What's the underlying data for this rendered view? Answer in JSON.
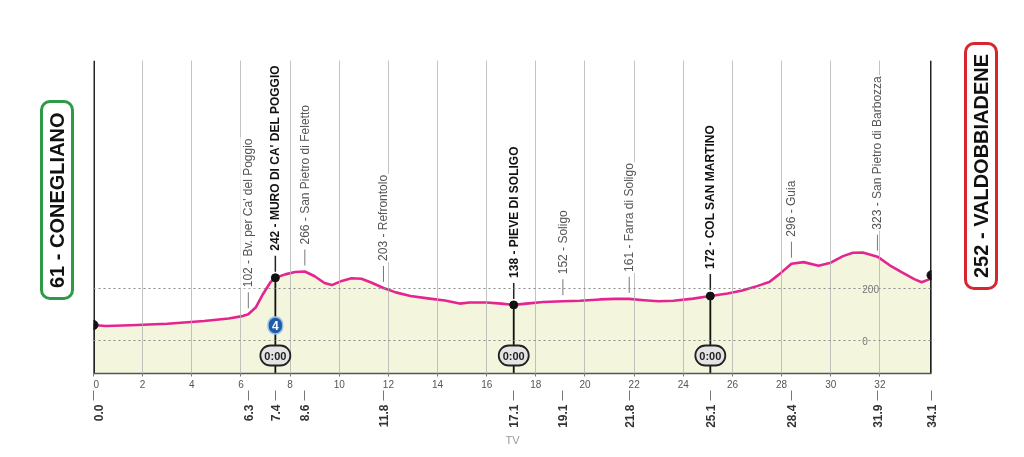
{
  "chart_data": {
    "type": "area",
    "x": [
      0,
      0.5,
      1.5,
      3,
      4.5,
      5.5,
      6.0,
      6.3,
      6.6,
      6.9,
      7.2,
      7.4,
      7.8,
      8.2,
      8.6,
      9.0,
      9.4,
      9.7,
      10.1,
      10.5,
      10.9,
      11.3,
      11.8,
      12.3,
      12.9,
      13.6,
      14.3,
      14.9,
      15.3,
      16.0,
      16.6,
      17.1,
      17.6,
      18.3,
      19.1,
      19.8,
      20.6,
      21.2,
      21.8,
      22.4,
      23.0,
      23.6,
      24.4,
      25.1,
      25.8,
      26.4,
      27.0,
      27.5,
      27.9,
      28.4,
      28.9,
      29.5,
      30.0,
      30.5,
      30.9,
      31.3,
      31.9,
      32.4,
      32.9,
      33.4,
      33.7,
      34.0,
      34.1
    ],
    "series": [
      {
        "color": "#f3f5dc",
        "values": [
          61,
          57,
          60,
          66,
          76,
          86,
          94,
          102,
          128,
          180,
          225,
          242,
          255,
          264,
          266,
          248,
          222,
          214,
          230,
          240,
          238,
          224,
          203,
          186,
          172,
          163,
          155,
          143,
          147,
          147,
          143,
          138,
          143,
          149,
          152,
          154,
          159,
          161,
          161,
          156,
          152,
          154,
          162,
          172,
          182,
          193,
          210,
          226,
          255,
          296,
          302,
          288,
          300,
          325,
          338,
          339,
          323,
          290,
          263,
          237,
          225,
          236,
          252
        ]
      }
    ],
    "xlim": [
      0,
      34.1
    ],
    "xticks": [
      0,
      2,
      4,
      6,
      8,
      10,
      12,
      14,
      16,
      18,
      20,
      22,
      24,
      26,
      28,
      30,
      32
    ],
    "x2lim": [
      0,
      34.1
    ],
    "x2ticks": [
      {
        "value": 0,
        "label": "0.0"
      },
      6.3,
      7.4,
      8.6,
      11.8,
      17.1,
      19.1,
      21.8,
      25.1,
      28.4,
      31.9,
      34.1
    ],
    "ylim": [
      -125,
      1075
    ],
    "yticks": [
      0,
      200
    ],
    "grid": true,
    "ref_lines": [
      {
        "axis": "x",
        "value": 7.4
      },
      {
        "axis": "x",
        "value": 17.1
      },
      {
        "axis": "x",
        "value": 25.1
      }
    ],
    "annotations": [
      {
        "text": "61 - CONEGLIANO",
        "x": 0,
        "y": 61
      },
      {
        "text": "102 - Bv. per Ca' del Poggio",
        "x": 6.3,
        "y": 102
      },
      {
        "text": "242 - MURO DI CA' DEL POGGIO",
        "x": 7.4,
        "y": 242
      },
      {
        "text": "0:00",
        "x": 7.4
      },
      {
        "text": "4",
        "x": 7.4
      },
      {
        "text": "266 - San Pietro di Feletto",
        "x": 8.6,
        "y": 266
      },
      {
        "text": "203 - Refrontolo",
        "x": 11.8,
        "y": 203
      },
      {
        "text": "138 - PIEVE DI SOLIGO",
        "x": 17.1,
        "y": 138
      },
      {
        "text": "0:00",
        "x": 17.1
      },
      {
        "text": "152 - Soligo",
        "x": 19.1,
        "y": 152
      },
      {
        "text": "161 - Farra di Soligo",
        "x": 21.8,
        "y": 161
      },
      {
        "text": "172 - COL SAN MARTINO",
        "x": 25.1,
        "y": 172
      },
      {
        "text": "0:00",
        "x": 25.1
      },
      {
        "text": "296 - Guia",
        "x": 28.4,
        "y": 296
      },
      {
        "text": "323 - San Pietro di Barbozza",
        "x": 31.9,
        "y": 323
      },
      {
        "text": "252 - VALDOBBIADENE",
        "x": 34.1,
        "y": 252
      },
      "TV"
    ]
  }
}
